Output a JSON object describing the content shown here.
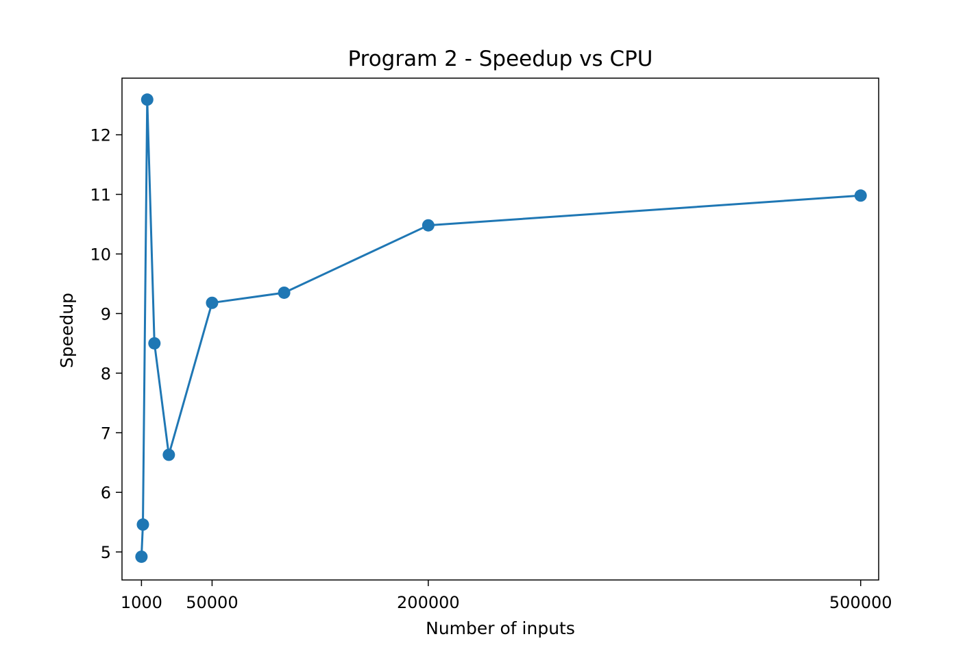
{
  "chart_data": {
    "type": "line",
    "title": "Program 2 - Speedup vs CPU",
    "xlabel": "Number of inputs",
    "ylabel": "Speedup",
    "xlim": [
      -12500,
      512500
    ],
    "ylim": [
      4.53,
      12.95
    ],
    "xticks": [
      1000,
      50000,
      200000,
      500000
    ],
    "xtick_labels": [
      "1000",
      "50000",
      "200000",
      "500000"
    ],
    "yticks": [
      5,
      6,
      7,
      8,
      9,
      10,
      11,
      12
    ],
    "ytick_labels": [
      "5",
      "6",
      "7",
      "8",
      "9",
      "10",
      "11",
      "12"
    ],
    "grid": false,
    "legend": false,
    "series": [
      {
        "color": "#1f77b4",
        "marker": "circle",
        "x": [
          1000,
          2000,
          5000,
          10000,
          20000,
          50000,
          100000,
          200000,
          500000
        ],
        "y": [
          4.92,
          5.46,
          12.59,
          8.5,
          6.63,
          9.18,
          9.35,
          10.48,
          10.98
        ]
      }
    ]
  }
}
